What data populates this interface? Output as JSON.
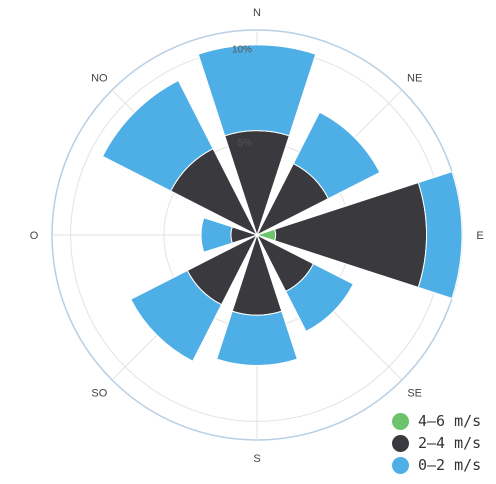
{
  "chart_data": {
    "type": "windrose",
    "directions": [
      "N",
      "NE",
      "E",
      "SE",
      "S",
      "SO",
      "O",
      "NO"
    ],
    "radial_ticks": [
      "5%",
      "10%"
    ],
    "rmax": 11,
    "stacking": "series stacked outward in this order",
    "series": [
      {
        "name": "4–6 m/s",
        "color": "#6cc36c",
        "values": [
          0,
          0,
          1.0,
          0,
          0,
          0,
          0,
          0
        ]
      },
      {
        "name": "2–4 m/s",
        "color": "#3a3a3e",
        "values": [
          5.6,
          4.3,
          8.1,
          3.4,
          4.3,
          4.2,
          1.4,
          5.2
        ]
      },
      {
        "name": "0–2 m/s",
        "color": "#4eaee6",
        "values": [
          4.6,
          3.1,
          1.9,
          2.4,
          2.7,
          3.4,
          1.6,
          4.1
        ]
      }
    ],
    "legend_order": [
      "4–6 m/s",
      "2–4 m/s",
      "0–2 m/s"
    ],
    "legend_position": "bottom-right",
    "grid": true
  }
}
